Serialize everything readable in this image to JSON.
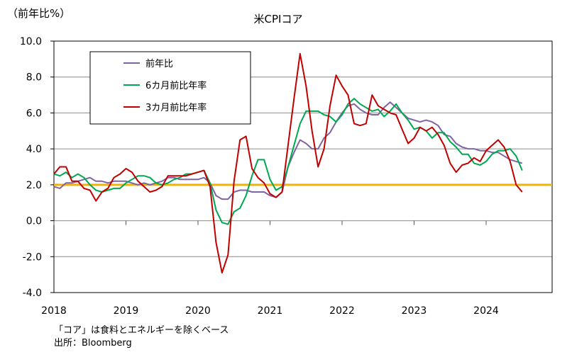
{
  "chart_data": {
    "type": "line",
    "title": "米CPIコア",
    "ylabel": "（前年比%）",
    "ylim": [
      -4.0,
      10.0
    ],
    "yticks": [
      "10.0",
      "8.0",
      "6.0",
      "4.0",
      "2.0",
      "0.0",
      "-2.0",
      "-4.0"
    ],
    "xlim": [
      2018.0,
      2024.9
    ],
    "xticks": [
      "2018",
      "2019",
      "2020",
      "2021",
      "2022",
      "2023",
      "2024"
    ],
    "grid": "horizontal",
    "legend_position": "top-left",
    "reference_line": {
      "y": 2.0,
      "color": "#F0B400"
    },
    "series": [
      {
        "name": "前年比",
        "color": "#8064A2",
        "x": [
          2018.0,
          2018.083,
          2018.167,
          2018.25,
          2018.333,
          2018.417,
          2018.5,
          2018.583,
          2018.667,
          2018.75,
          2018.833,
          2018.917,
          2019.0,
          2019.083,
          2019.167,
          2019.25,
          2019.333,
          2019.417,
          2019.5,
          2019.583,
          2019.667,
          2019.75,
          2019.833,
          2019.917,
          2020.0,
          2020.083,
          2020.167,
          2020.25,
          2020.333,
          2020.417,
          2020.5,
          2020.583,
          2020.667,
          2020.75,
          2020.833,
          2020.917,
          2021.0,
          2021.083,
          2021.167,
          2021.25,
          2021.333,
          2021.417,
          2021.5,
          2021.583,
          2021.667,
          2021.75,
          2021.833,
          2021.917,
          2022.0,
          2022.083,
          2022.167,
          2022.25,
          2022.333,
          2022.417,
          2022.5,
          2022.583,
          2022.667,
          2022.75,
          2022.833,
          2022.917,
          2023.0,
          2023.083,
          2023.167,
          2023.25,
          2023.333,
          2023.417,
          2023.5,
          2023.583,
          2023.667,
          2023.75,
          2023.833,
          2023.917,
          2024.0,
          2024.083,
          2024.167,
          2024.25,
          2024.333,
          2024.417,
          2024.5
        ],
        "values": [
          1.9,
          1.8,
          2.1,
          2.1,
          2.2,
          2.3,
          2.4,
          2.2,
          2.2,
          2.1,
          2.2,
          2.2,
          2.2,
          2.1,
          2.0,
          2.1,
          2.0,
          2.1,
          2.2,
          2.4,
          2.4,
          2.3,
          2.3,
          2.3,
          2.3,
          2.4,
          2.1,
          1.4,
          1.2,
          1.2,
          1.6,
          1.7,
          1.7,
          1.6,
          1.6,
          1.6,
          1.4,
          1.3,
          1.6,
          3.0,
          3.8,
          4.5,
          4.3,
          4.0,
          4.0,
          4.6,
          4.9,
          5.5,
          6.0,
          6.4,
          6.5,
          6.2,
          6.0,
          5.9,
          5.9,
          6.3,
          6.6,
          6.3,
          6.0,
          5.7,
          5.6,
          5.5,
          5.6,
          5.5,
          5.3,
          4.8,
          4.7,
          4.3,
          4.1,
          4.0,
          4.0,
          3.9,
          3.9,
          3.8,
          3.8,
          3.6,
          3.4,
          3.3,
          3.2
        ]
      },
      {
        "name": "6カ月前比年率",
        "color": "#00A850",
        "x": [
          2018.0,
          2018.083,
          2018.167,
          2018.25,
          2018.333,
          2018.417,
          2018.5,
          2018.583,
          2018.667,
          2018.75,
          2018.833,
          2018.917,
          2019.0,
          2019.083,
          2019.167,
          2019.25,
          2019.333,
          2019.417,
          2019.5,
          2019.583,
          2019.667,
          2019.75,
          2019.833,
          2019.917,
          2020.0,
          2020.083,
          2020.167,
          2020.25,
          2020.333,
          2020.417,
          2020.5,
          2020.583,
          2020.667,
          2020.75,
          2020.833,
          2020.917,
          2021.0,
          2021.083,
          2021.167,
          2021.25,
          2021.333,
          2021.417,
          2021.5,
          2021.583,
          2021.667,
          2021.75,
          2021.833,
          2021.917,
          2022.0,
          2022.083,
          2022.167,
          2022.25,
          2022.333,
          2022.417,
          2022.5,
          2022.583,
          2022.667,
          2022.75,
          2022.833,
          2022.917,
          2023.0,
          2023.083,
          2023.167,
          2023.25,
          2023.333,
          2023.417,
          2023.5,
          2023.583,
          2023.667,
          2023.75,
          2023.833,
          2023.917,
          2024.0,
          2024.083,
          2024.167,
          2024.25,
          2024.333,
          2024.417,
          2024.5
        ],
        "values": [
          2.6,
          2.5,
          2.7,
          2.4,
          2.6,
          2.4,
          2.0,
          1.7,
          1.6,
          1.7,
          1.8,
          1.8,
          2.1,
          2.3,
          2.5,
          2.5,
          2.4,
          2.1,
          2.0,
          2.1,
          2.3,
          2.4,
          2.6,
          2.6,
          2.7,
          2.8,
          2.1,
          0.6,
          -0.1,
          -0.2,
          0.5,
          0.7,
          1.4,
          2.5,
          3.4,
          3.4,
          2.3,
          1.7,
          1.9,
          3.0,
          4.2,
          5.4,
          6.1,
          6.1,
          6.1,
          5.9,
          5.8,
          5.5,
          5.9,
          6.5,
          6.8,
          6.5,
          6.3,
          6.1,
          6.2,
          5.8,
          6.1,
          6.5,
          6.0,
          5.6,
          5.1,
          5.2,
          5.0,
          4.6,
          4.9,
          4.9,
          4.4,
          4.1,
          3.7,
          3.7,
          3.2,
          3.1,
          3.3,
          3.7,
          3.9,
          3.9,
          4.0,
          3.6,
          2.8
        ]
      },
      {
        "name": "3カ月前比年率",
        "color": "#C00000",
        "x": [
          2018.0,
          2018.083,
          2018.167,
          2018.25,
          2018.333,
          2018.417,
          2018.5,
          2018.583,
          2018.667,
          2018.75,
          2018.833,
          2018.917,
          2019.0,
          2019.083,
          2019.167,
          2019.25,
          2019.333,
          2019.417,
          2019.5,
          2019.583,
          2019.667,
          2019.75,
          2019.833,
          2019.917,
          2020.0,
          2020.083,
          2020.167,
          2020.25,
          2020.333,
          2020.417,
          2020.5,
          2020.583,
          2020.667,
          2020.75,
          2020.833,
          2020.917,
          2021.0,
          2021.083,
          2021.167,
          2021.25,
          2021.333,
          2021.417,
          2021.5,
          2021.583,
          2021.667,
          2021.75,
          2021.833,
          2021.917,
          2022.0,
          2022.083,
          2022.167,
          2022.25,
          2022.333,
          2022.417,
          2022.5,
          2022.583,
          2022.667,
          2022.75,
          2022.833,
          2022.917,
          2023.0,
          2023.083,
          2023.167,
          2023.25,
          2023.333,
          2023.417,
          2023.5,
          2023.583,
          2023.667,
          2023.75,
          2023.833,
          2023.917,
          2024.0,
          2024.083,
          2024.167,
          2024.25,
          2024.333,
          2024.417,
          2024.5
        ],
        "values": [
          2.6,
          3.0,
          3.0,
          2.2,
          2.2,
          1.8,
          1.7,
          1.1,
          1.6,
          1.8,
          2.4,
          2.6,
          2.9,
          2.7,
          2.2,
          1.9,
          1.6,
          1.7,
          1.9,
          2.5,
          2.5,
          2.5,
          2.5,
          2.6,
          2.7,
          2.8,
          1.9,
          -1.2,
          -2.9,
          -1.9,
          2.2,
          4.5,
          4.7,
          2.9,
          2.4,
          2.1,
          1.5,
          1.3,
          1.6,
          4.2,
          6.8,
          9.3,
          7.5,
          5.0,
          3.0,
          4.0,
          6.4,
          8.1,
          7.5,
          7.0,
          5.4,
          5.3,
          5.4,
          7.0,
          6.4,
          6.2,
          6.0,
          5.9,
          5.1,
          4.3,
          4.6,
          5.2,
          5.0,
          5.2,
          4.8,
          4.2,
          3.2,
          2.7,
          3.1,
          3.2,
          3.5,
          3.3,
          3.9,
          4.2,
          4.5,
          4.1,
          3.3,
          2.0,
          1.6
        ]
      }
    ]
  },
  "notes": {
    "definition": "「コア」は食料とエネルギーを除くベース",
    "source": "出所：Bloomberg"
  }
}
